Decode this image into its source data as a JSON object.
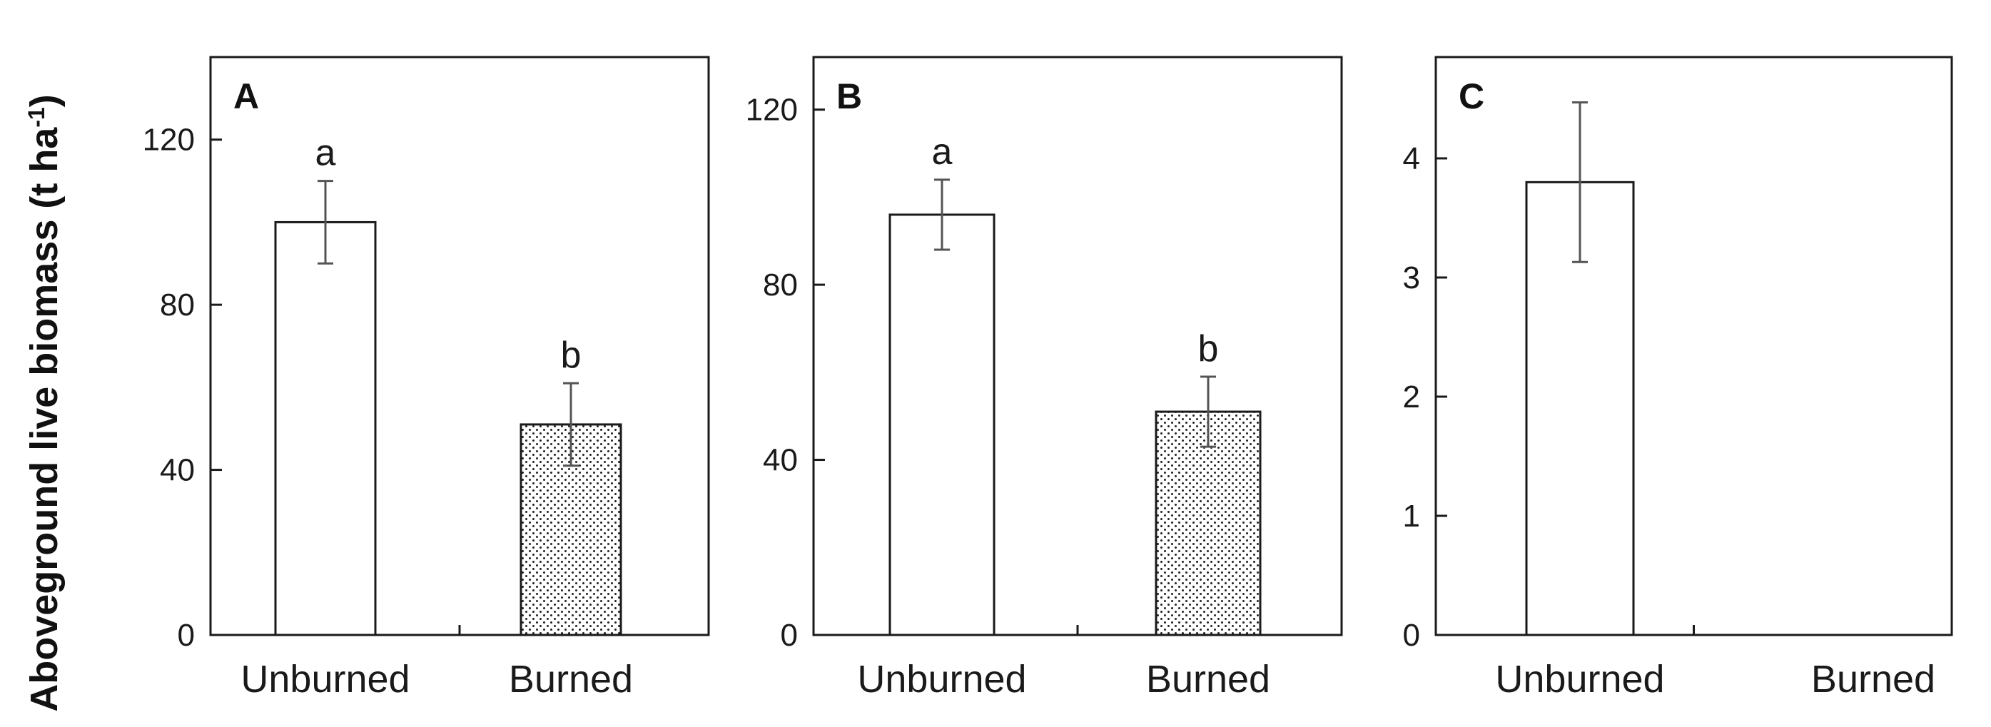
{
  "y_axis_label": {
    "main": "Aboveground live biomass (t ha",
    "superscript": "-1",
    "close": ")"
  },
  "colors": {
    "axis": "#1a1a1a",
    "bar_fill_unburned": "#ffffff",
    "bar_fill_burned_pattern": "dotted",
    "error_bar": "#555555"
  },
  "chart_data": [
    {
      "type": "bar",
      "panel": "A",
      "categories": [
        "Unburned",
        "Burned"
      ],
      "values": [
        100,
        51
      ],
      "errors": [
        10,
        10
      ],
      "significance_letters": [
        "a",
        "b"
      ],
      "ylim": [
        0,
        140
      ],
      "yticks": [
        0,
        40,
        80,
        120
      ],
      "ytick_labels": [
        "0",
        "40",
        "80",
        "120"
      ],
      "fills": [
        "solid",
        "dotted"
      ]
    },
    {
      "type": "bar",
      "panel": "B",
      "categories": [
        "Unburned",
        "Burned"
      ],
      "values": [
        96,
        51
      ],
      "errors": [
        8,
        8
      ],
      "significance_letters": [
        "a",
        "b"
      ],
      "ylim": [
        0,
        132
      ],
      "yticks": [
        0,
        40,
        80,
        120
      ],
      "ytick_labels": [
        "0",
        "40",
        "80",
        "120"
      ],
      "fills": [
        "solid",
        "dotted"
      ]
    },
    {
      "type": "bar",
      "panel": "C",
      "categories": [
        "Unburned",
        "Burned"
      ],
      "values": [
        3.8,
        null
      ],
      "errors": [
        0.67,
        null
      ],
      "significance_letters": [
        "",
        ""
      ],
      "ylim": [
        0,
        4.85
      ],
      "yticks": [
        0,
        1,
        2,
        3,
        4
      ],
      "ytick_labels": [
        "0",
        "1",
        "2",
        "3",
        "4"
      ],
      "fills": [
        "solid",
        "none"
      ]
    }
  ]
}
